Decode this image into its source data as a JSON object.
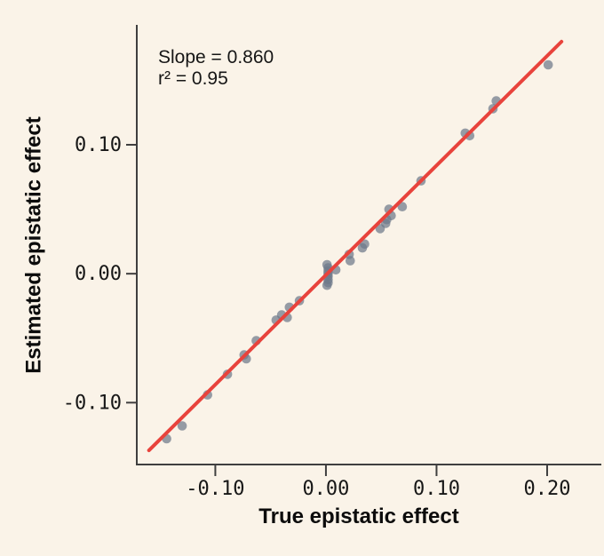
{
  "colors": {
    "background": "#faf3e8",
    "axis": "#3f3f3f",
    "text": "#161616",
    "fit_line": "#e8433c",
    "point": "#6e7889"
  },
  "chart_data": {
    "type": "scatter",
    "title": "",
    "xlabel": "True epistatic effect",
    "ylabel": "Estimated epistatic effect",
    "annotations": [
      "Slope = 0.860",
      "r² = 0.95"
    ],
    "slope": 0.86,
    "r_squared": 0.95,
    "xlim": [
      -0.171,
      0.249
    ],
    "ylim": [
      -0.148,
      0.193
    ],
    "grid": false,
    "legend": "none",
    "x_ticks": [
      {
        "v": -0.1,
        "label": "-0.10"
      },
      {
        "v": 0.0,
        "label": "0.00"
      },
      {
        "v": 0.1,
        "label": "0.10"
      },
      {
        "v": 0.2,
        "label": "0.20"
      }
    ],
    "y_ticks": [
      {
        "v": 0.1,
        "label": "0.10"
      },
      {
        "v": 0.0,
        "label": "0.00"
      },
      {
        "v": -0.1,
        "label": "-0.10"
      }
    ],
    "fit_line": {
      "x1": -0.16,
      "y1": -0.137,
      "x2": 0.213,
      "y2": 0.18
    },
    "points": [
      [
        -0.144,
        -0.128
      ],
      [
        -0.13,
        -0.118
      ],
      [
        -0.107,
        -0.094
      ],
      [
        -0.089,
        -0.078
      ],
      [
        -0.074,
        -0.063
      ],
      [
        -0.072,
        -0.066
      ],
      [
        -0.063,
        -0.052
      ],
      [
        -0.045,
        -0.036
      ],
      [
        -0.04,
        -0.032
      ],
      [
        -0.035,
        -0.034
      ],
      [
        -0.033,
        -0.026
      ],
      [
        -0.024,
        -0.021
      ],
      [
        0.001,
        0.007
      ],
      [
        0.002,
        0.0045
      ],
      [
        0.002,
        0.002
      ],
      [
        0.002,
        0.0
      ],
      [
        0.002,
        -0.002
      ],
      [
        0.002,
        -0.0045
      ],
      [
        0.002,
        -0.007
      ],
      [
        0.001,
        -0.009
      ],
      [
        0.009,
        0.003
      ],
      [
        0.021,
        0.015
      ],
      [
        0.022,
        0.01
      ],
      [
        0.033,
        0.02
      ],
      [
        0.035,
        0.023
      ],
      [
        0.049,
        0.035
      ],
      [
        0.054,
        0.039
      ],
      [
        0.055,
        0.042
      ],
      [
        0.059,
        0.045
      ],
      [
        0.057,
        0.05
      ],
      [
        0.069,
        0.052
      ],
      [
        0.086,
        0.072
      ],
      [
        0.126,
        0.109
      ],
      [
        0.13,
        0.107
      ],
      [
        0.151,
        0.128
      ],
      [
        0.154,
        0.134
      ],
      [
        0.201,
        0.162
      ]
    ]
  }
}
